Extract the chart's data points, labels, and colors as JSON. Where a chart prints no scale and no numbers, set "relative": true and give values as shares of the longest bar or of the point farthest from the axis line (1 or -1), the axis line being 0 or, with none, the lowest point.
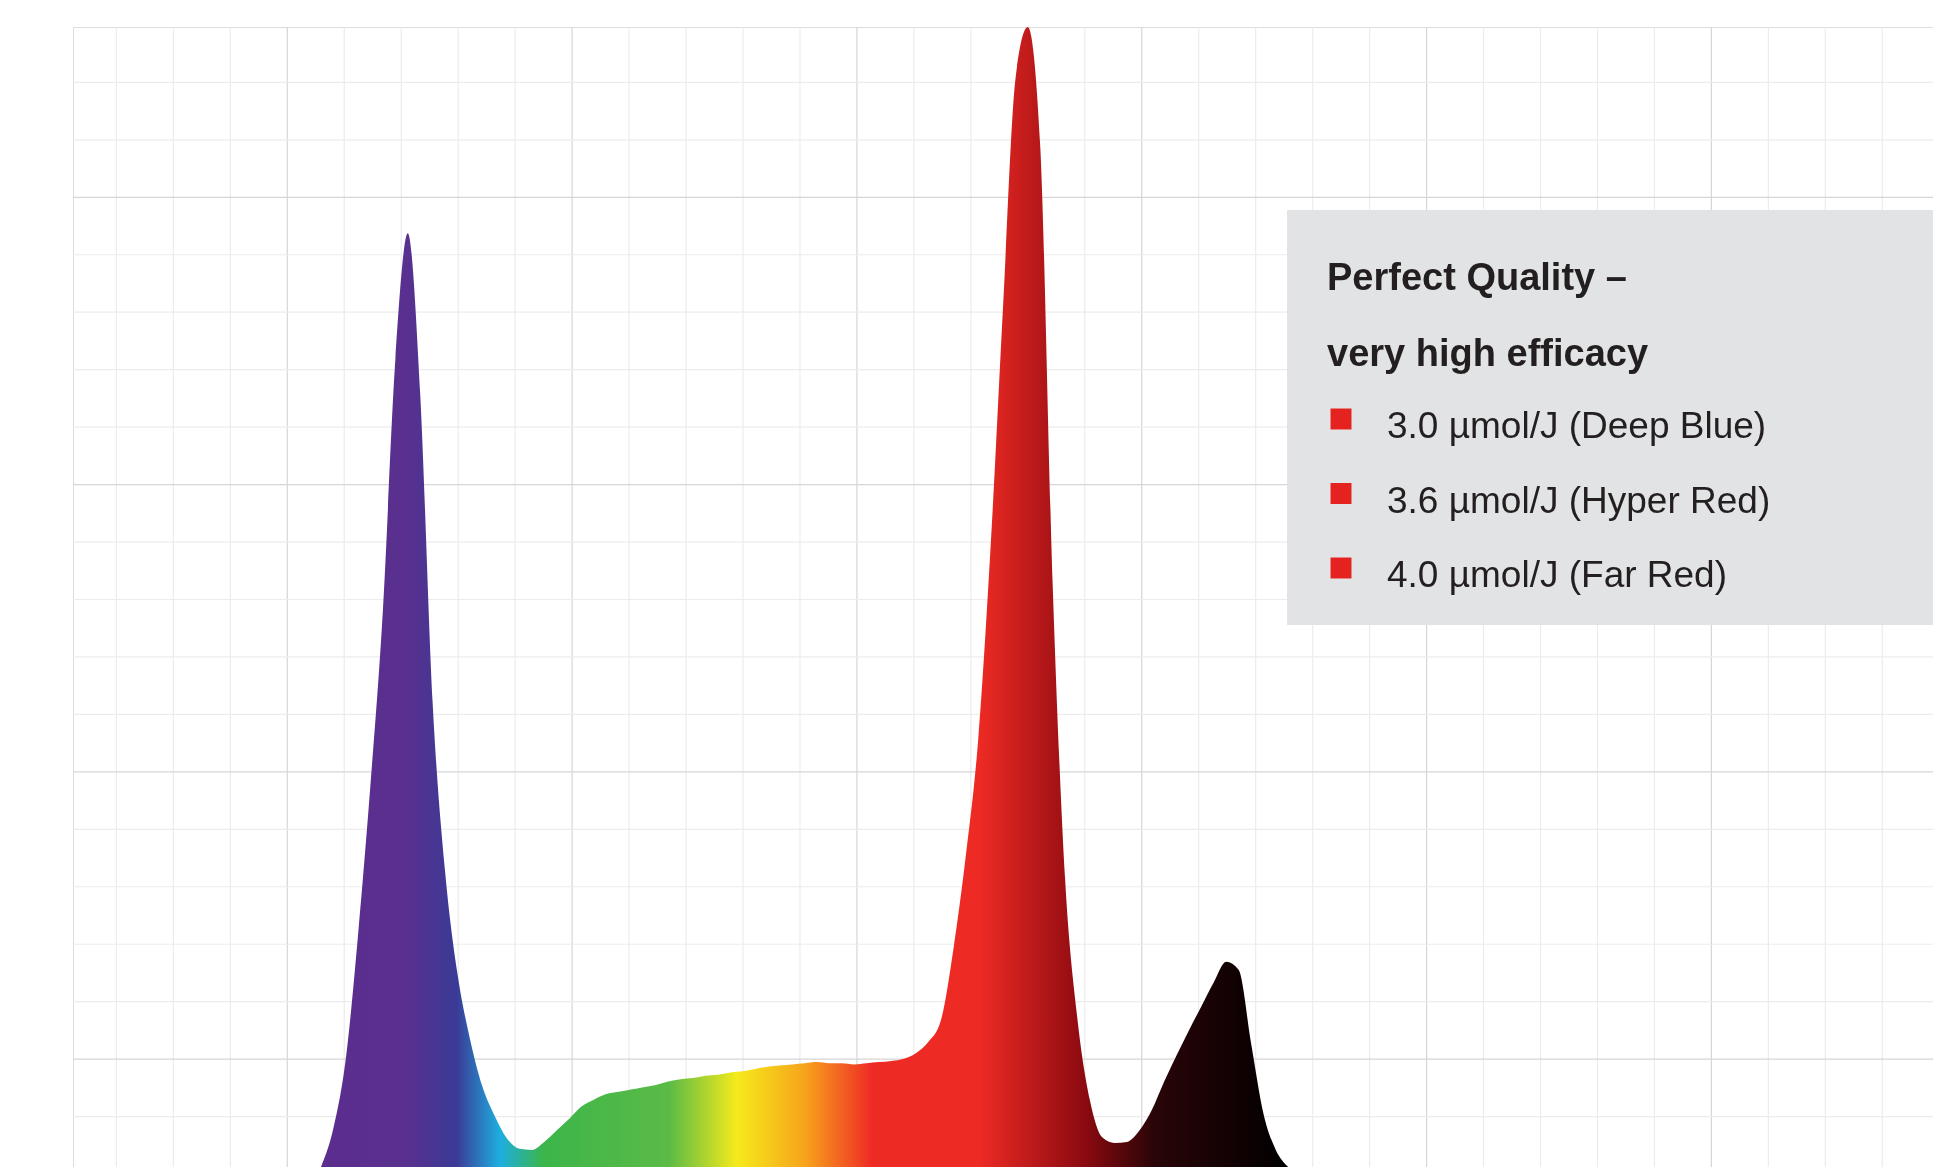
{
  "chart_data": {
    "type": "area",
    "relative": true,
    "grid": true,
    "marker": "none",
    "title": "Perfect Quality –\nvery high efficacy",
    "annotations": [
      "3.0 µmol/J (Deep Blue)",
      "3.6 µmol/J (Hyper Red)",
      "4.0 µmol/J (Far Red)"
    ],
    "categories": [
      null,
      null,
      null,
      null,
      null,
      null,
      null,
      null,
      null,
      null,
      null,
      null,
      null,
      null,
      null,
      null,
      null,
      null,
      null,
      null,
      null,
      null,
      null,
      null,
      null,
      null,
      null,
      null,
      null,
      null,
      null,
      null,
      null,
      null,
      null,
      null,
      null,
      null,
      null,
      null,
      null,
      null,
      null,
      null,
      null,
      null,
      null,
      null,
      null,
      null,
      null,
      null,
      null,
      null,
      null,
      null,
      null,
      null,
      null,
      null,
      null,
      null,
      null,
      null,
      null,
      null,
      null,
      null,
      null,
      null,
      null,
      null,
      null,
      null,
      null,
      null,
      null,
      null,
      null,
      null,
      null,
      null,
      null,
      null,
      null,
      null,
      null,
      null,
      null,
      null,
      null,
      null,
      null,
      null,
      null,
      null,
      null,
      null,
      null,
      null,
      null,
      null,
      null,
      null,
      null,
      null,
      null,
      null,
      null,
      null,
      null,
      null,
      null,
      null,
      null,
      null,
      null,
      null,
      null,
      null,
      null,
      null,
      null,
      null,
      null,
      null,
      null,
      null,
      null,
      null,
      null,
      null,
      null,
      null,
      null,
      null,
      null,
      null,
      null,
      null,
      null,
      null,
      null,
      null,
      null,
      null,
      null,
      null,
      null,
      null,
      null
    ],
    "series": [
      {
        "color": "#ee2a24",
        "values": [
          null,
          null,
          null,
          null,
          null,
          null,
          null,
          null,
          null,
          null,
          null,
          null,
          null,
          null,
          null,
          null,
          null,
          null,
          null,
          null,
          0,
          0.034,
          0.095,
          0.205,
          0.337,
          0.49,
          0.709,
          0.819,
          0.678,
          0.408,
          0.26,
          0.17,
          0.113,
          0.071,
          0.045,
          0.025,
          0.016,
          0.015,
          0.022,
          0.032,
          0.042,
          0.053,
          0.059,
          0.064,
          0.066,
          0.068,
          0.07,
          0.072,
          0.075,
          0.077,
          0.078,
          0.08,
          0.081,
          0.083,
          0.084,
          0.086,
          0.088,
          0.089,
          0.09,
          0.091,
          0.092,
          0.091,
          0.091,
          0.09,
          0.091,
          0.092,
          0.093,
          0.095,
          0.1,
          0.11,
          0.129,
          0.191,
          0.273,
          0.375,
          0.544,
          0.754,
          0.954,
          1.0,
          0.896,
          0.513,
          0.254,
          0.13,
          0.059,
          0.026,
          0.021,
          0.022,
          0.032,
          0.05,
          0.075,
          0.098,
          0.12,
          0.141,
          0.162,
          0.18,
          0.173,
          0.109,
          0.047,
          0.015,
          0,
          null,
          null,
          null,
          null,
          null,
          null,
          null,
          null,
          null,
          null,
          null,
          null,
          null,
          null,
          null,
          null,
          null,
          null,
          null,
          null,
          null,
          null,
          null,
          null,
          null,
          null,
          null,
          null,
          null,
          null,
          null,
          null,
          null,
          null,
          null,
          null,
          null,
          null,
          null,
          null,
          null,
          null,
          null,
          null,
          null,
          null,
          null,
          null,
          null,
          null,
          null,
          null
        ]
      }
    ]
  }
}
